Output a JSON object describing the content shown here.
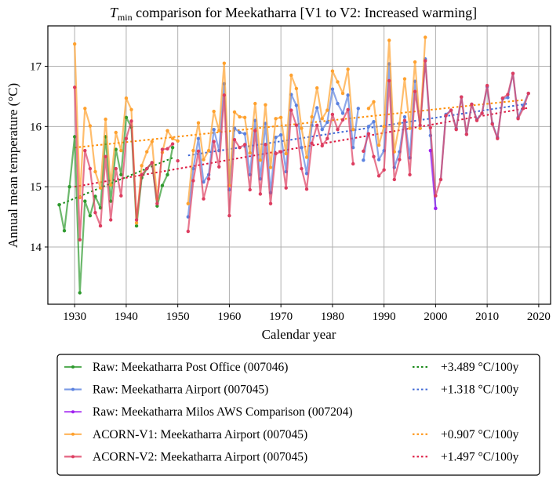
{
  "chart_data": {
    "type": "line",
    "title": "T_min comparison for Meekatharra   [V1 to V2: Increased warming]",
    "title_parts": {
      "symbol": "T",
      "subscript": "min",
      "rest": " comparison for Meekatharra   [V1 to V2: Increased warming]"
    },
    "xlabel": "Calendar year",
    "ylabel": "Annual mean temperature (°C)",
    "xlim": [
      1924.8,
      2022.3
    ],
    "ylim": [
      13.05,
      17.67
    ],
    "xticks": [
      1930,
      1940,
      1950,
      1960,
      1970,
      1980,
      1990,
      2000,
      2010,
      2020
    ],
    "yticks": [
      14,
      15,
      16,
      17
    ],
    "grid": true,
    "legend_position": "below-plot",
    "series": [
      {
        "name": "Raw: Meekatharra Post Office (007046)",
        "color": "#2e9a2e",
        "segments": [
          {
            "x": [
              1927,
              1928,
              1929,
              1930,
              1931,
              1932,
              1933,
              1934,
              1935,
              1936,
              1937,
              1938,
              1939,
              1940,
              1941,
              1942,
              1943,
              1944,
              1945,
              1946,
              1947,
              1948,
              1949
            ],
            "y": [
              14.7,
              14.27,
              15.0,
              15.83,
              13.24,
              14.76,
              14.52,
              14.84,
              14.65,
              15.83,
              14.76,
              15.62,
              15.2,
              16.15,
              15.99,
              14.35,
              15.15,
              15.3,
              15.4,
              14.68,
              15.02,
              15.2,
              15.65
            ]
          }
        ]
      },
      {
        "name": "Raw: Meekatharra Airport (007045)",
        "color": "#5b82e0",
        "segments": [
          {
            "x": [
              1952,
              1953,
              1954,
              1955,
              1956,
              1957,
              1958,
              1959,
              1960,
              1961,
              1962,
              1963,
              1964,
              1965,
              1966,
              1967,
              1968,
              1969,
              1970,
              1971,
              1972,
              1973,
              1974,
              1975,
              1976,
              1977,
              1978,
              1979,
              1980,
              1981,
              1982,
              1983,
              1984,
              1985
            ],
            "y": [
              14.5,
              15.3,
              15.8,
              15.08,
              15.2,
              15.95,
              15.6,
              16.71,
              14.95,
              15.97,
              15.9,
              15.88,
              15.2,
              16.1,
              15.13,
              16.05,
              14.9,
              15.82,
              15.86,
              15.25,
              16.53,
              16.35,
              15.65,
              15.22,
              16.02,
              16.31,
              15.95,
              16.07,
              16.62,
              16.38,
              16.22,
              16.52,
              15.65,
              16.3
            ]
          },
          {
            "x": [
              1986,
              1987,
              1988,
              1989,
              1990,
              1991,
              1992,
              1993,
              1994,
              1995,
              1996,
              1997,
              1998,
              1999,
              2000
            ],
            "y": [
              15.44,
              16.0,
              16.08,
              15.45,
              15.6,
              17.04,
              15.32,
              15.58,
              16.16,
              15.48,
              16.75,
              15.97,
              17.12,
              15.85,
              14.64
            ]
          },
          {
            "x": [
              2001,
              2002,
              2003,
              2004,
              2005,
              2006,
              2007,
              2008,
              2009,
              2010,
              2011,
              2012,
              2013,
              2014,
              2015,
              2016,
              2017,
              2018
            ],
            "y": [
              15.12,
              16.2,
              16.27,
              15.97,
              16.49,
              15.87,
              16.37,
              16.12,
              16.22,
              16.66,
              16.05,
              15.82,
              16.46,
              16.48,
              16.88,
              16.15,
              16.35,
              16.55
            ]
          }
        ]
      },
      {
        "name": "Raw: Meekatharra Milos AWS Comparison (007204)",
        "color": "#a020f0",
        "segments": [
          {
            "x": [
              1999,
              2000
            ],
            "y": [
              15.6,
              14.64
            ]
          }
        ]
      },
      {
        "name": "ACORN-V1: Meekatharra Airport (007045)",
        "color": "#ffa12e",
        "segments": [
          {
            "x": [
              1930,
              1931,
              1932,
              1933,
              1934,
              1935,
              1936,
              1937,
              1938,
              1939,
              1940,
              1941,
              1942,
              1943,
              1944,
              1945,
              1946,
              1947,
              1948,
              1949,
              1950
            ],
            "y": [
              17.37,
              14.82,
              16.3,
              16.01,
              15.25,
              14.98,
              16.12,
              15.03,
              15.9,
              15.6,
              16.47,
              16.28,
              14.4,
              15.35,
              15.58,
              15.75,
              14.8,
              15.57,
              15.93,
              15.8,
              15.76
            ]
          },
          {
            "x": [
              1952,
              1953,
              1954,
              1955,
              1956,
              1957,
              1958,
              1959,
              1960,
              1961,
              1962,
              1963,
              1964,
              1965,
              1966,
              1967,
              1968,
              1969,
              1970,
              1971,
              1972,
              1973,
              1974,
              1975,
              1976,
              1977,
              1978,
              1979,
              1980,
              1981,
              1982,
              1983,
              1984
            ],
            "y": [
              14.72,
              15.6,
              16.06,
              15.45,
              15.6,
              16.25,
              15.93,
              17.05,
              15.02,
              16.24,
              16.16,
              16.15,
              15.56,
              16.38,
              15.44,
              16.36,
              15.32,
              16.13,
              16.15,
              15.55,
              16.85,
              16.63,
              15.97,
              15.49,
              16.16,
              16.64,
              16.13,
              16.27,
              16.92,
              16.74,
              16.55,
              16.95,
              15.95
            ]
          },
          {
            "x": [
              1987,
              1988,
              1989,
              1990,
              1991,
              1992,
              1993,
              1994,
              1995,
              1996,
              1997,
              1998
            ],
            "y": [
              16.3,
              16.41,
              15.69,
              16.0,
              17.43,
              15.58,
              16.05,
              16.79,
              15.97,
              17.07,
              15.97,
              17.48
            ]
          }
        ]
      },
      {
        "name": "ACORN-V2: Meekatharra Airport (007045)",
        "color": "#dd3d60",
        "segments": [
          {
            "x": [
              1930,
              1931,
              1932,
              1933,
              1934,
              1935,
              1936,
              1937,
              1938,
              1939,
              1940,
              1941,
              1942,
              1943,
              1944,
              1945,
              1946,
              1947,
              1948,
              1949
            ],
            "y": [
              16.65,
              14.12,
              15.6,
              15.3,
              14.57,
              14.35,
              15.5,
              14.45,
              15.3,
              14.85,
              15.8,
              16.09,
              14.45,
              15.2,
              15.3,
              15.4,
              14.72,
              15.62,
              15.63,
              15.71
            ]
          },
          {
            "x": [
              1950
            ],
            "y": [
              15.43
            ]
          },
          {
            "x": [
              1952,
              1953,
              1954,
              1955,
              1956,
              1957,
              1958,
              1959,
              1960,
              1961,
              1962,
              1963,
              1964,
              1965,
              1966,
              1967,
              1968,
              1969,
              1970,
              1971,
              1972,
              1973,
              1974,
              1975,
              1976,
              1977,
              1978,
              1979,
              1980,
              1981,
              1982,
              1983,
              1984
            ],
            "y": [
              14.26,
              15.1,
              15.59,
              14.8,
              15.13,
              15.75,
              15.33,
              16.52,
              14.52,
              15.78,
              15.65,
              15.7,
              14.95,
              15.93,
              14.88,
              15.7,
              14.72,
              15.55,
              15.58,
              14.98,
              16.27,
              16.02,
              15.3,
              14.96,
              15.72,
              16.02,
              15.68,
              15.8,
              16.2,
              15.95,
              16.11,
              16.28,
              15.38
            ]
          },
          {
            "x": [
              1986,
              1987,
              1988,
              1989,
              1990,
              1991,
              1992,
              1993,
              1994,
              1995,
              1996,
              1997,
              1998,
              1999,
              2000,
              2001,
              2002,
              2003,
              2004,
              2005,
              2006,
              2007,
              2008,
              2009,
              2010,
              2011,
              2012,
              2013,
              2014,
              2015,
              2016,
              2017,
              2018
            ],
            "y": [
              15.59,
              15.88,
              15.5,
              15.18,
              15.28,
              16.76,
              15.12,
              15.45,
              16.1,
              15.2,
              16.58,
              16.02,
              17.09,
              15.98,
              14.85,
              15.12,
              16.18,
              16.27,
              15.95,
              16.49,
              15.87,
              16.37,
              16.1,
              16.22,
              16.68,
              16.04,
              15.8,
              16.47,
              16.53,
              16.88,
              16.13,
              16.3,
              16.55
            ]
          }
        ]
      }
    ],
    "trend_lines": [
      {
        "label": "+3.489 °C/100y",
        "color": "#1a8a1a",
        "x": [
          1927,
          1949
        ],
        "y": [
          14.7,
          15.48
        ]
      },
      {
        "label": "+1.318 °C/100y",
        "color": "#3f68d6",
        "x": [
          1952,
          2018
        ],
        "y": [
          15.52,
          16.38
        ]
      },
      {
        "label": "+0.907 °C/100y",
        "color": "#ff8c00",
        "x": [
          1930,
          2017
        ],
        "y": [
          15.65,
          16.44
        ]
      },
      {
        "label": "+1.497 °C/100y",
        "color": "#dc143c",
        "x": [
          1930,
          2018
        ],
        "y": [
          15.0,
          16.31
        ]
      }
    ],
    "legend": {
      "entries": [
        {
          "label": "Raw: Meekatharra Post Office (007046)",
          "color": "#2e9a2e",
          "trend": "+3.489 °C/100y",
          "trend_color": "#1a8a1a"
        },
        {
          "label": "Raw: Meekatharra Airport (007045)",
          "color": "#5b82e0",
          "trend": "+1.318 °C/100y",
          "trend_color": "#3f68d6"
        },
        {
          "label": "Raw: Meekatharra Milos AWS Comparison (007204)",
          "color": "#a020f0",
          "trend": "",
          "trend_color": ""
        },
        {
          "label": "ACORN-V1: Meekatharra Airport (007045)",
          "color": "#ffa12e",
          "trend": "+0.907 °C/100y",
          "trend_color": "#ff8c00"
        },
        {
          "label": "ACORN-V2: Meekatharra Airport (007045)",
          "color": "#dd3d60",
          "trend": "+1.497 °C/100y",
          "trend_color": "#dc143c"
        }
      ]
    }
  }
}
